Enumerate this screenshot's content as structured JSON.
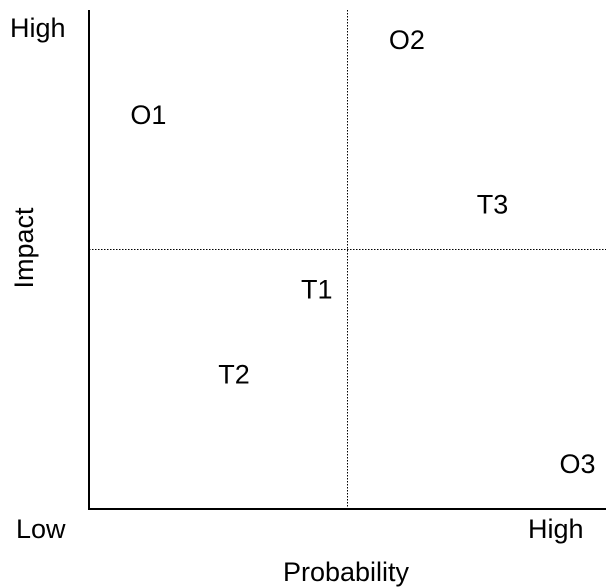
{
  "chart_data": {
    "type": "scatter",
    "title": "",
    "xlabel": "Probability",
    "ylabel": "Impact",
    "x_tick_labels": {
      "low": "Low",
      "high": "High"
    },
    "y_tick_labels": {
      "low": "Low",
      "high": "High"
    },
    "xlim": [
      0,
      1
    ],
    "ylim": [
      0,
      1
    ],
    "grid": false,
    "dividers": {
      "x": 0.5,
      "y": 0.52
    },
    "points": [
      {
        "label": "O1",
        "x": 0.08,
        "y": 0.79
      },
      {
        "label": "O2",
        "x": 0.58,
        "y": 0.94
      },
      {
        "label": "T3",
        "x": 0.75,
        "y": 0.61
      },
      {
        "label": "T1",
        "x": 0.41,
        "y": 0.44
      },
      {
        "label": "T2",
        "x": 0.25,
        "y": 0.27
      },
      {
        "label": "O3",
        "x": 0.91,
        "y": 0.09
      }
    ]
  }
}
